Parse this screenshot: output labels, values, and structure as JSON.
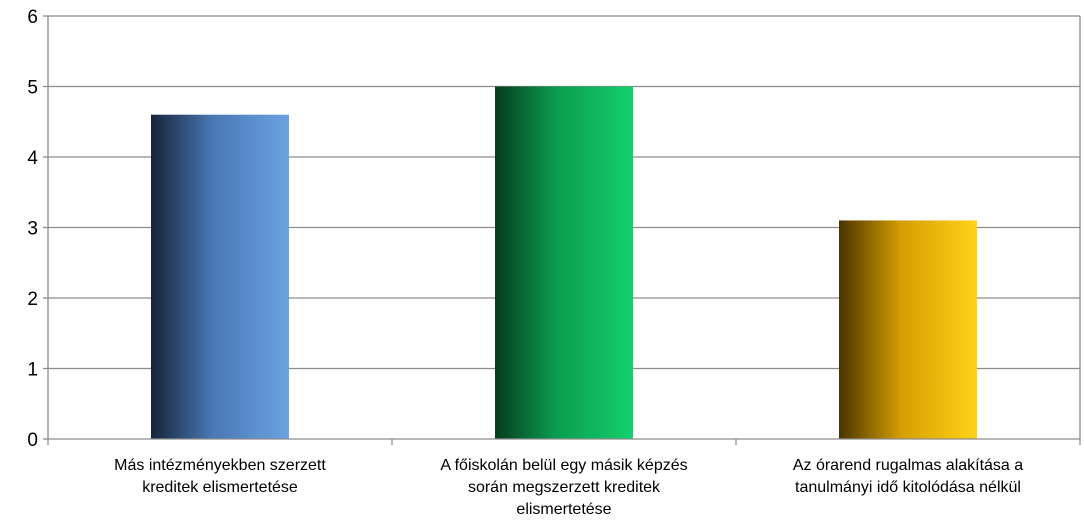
{
  "chart_data": {
    "type": "bar",
    "categories": [
      [
        "Más intézményekben szerzett",
        "kreditek elismertetése"
      ],
      [
        "A főiskolán belül egy másik képzés",
        "során megszerzett kreditek",
        "elismertetése"
      ],
      [
        "Az órarend rugalmas alakítása a",
        "tanulmányi idő kitolódása nélkül"
      ]
    ],
    "values": [
      4.6,
      5.0,
      3.1
    ],
    "ylim": [
      0,
      6
    ],
    "yticks": [
      "0",
      "1",
      "2",
      "3",
      "4",
      "5",
      "6"
    ],
    "grid": true,
    "legend": "none",
    "colors": [
      {
        "dark": "#15243a",
        "mid": "#4a78b4",
        "light": "#6aa2e2"
      },
      {
        "dark": "#063c1e",
        "mid": "#0b9e4f",
        "light": "#14cf6d"
      },
      {
        "dark": "#4a3400",
        "mid": "#d69e00",
        "light": "#ffd21a"
      }
    ]
  }
}
